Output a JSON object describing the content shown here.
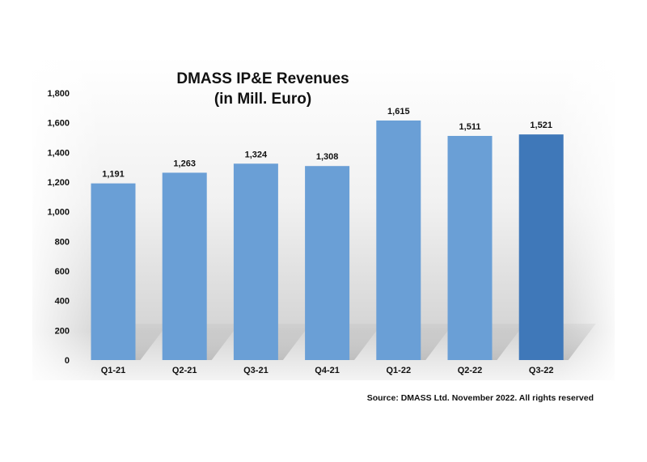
{
  "chart_data": {
    "type": "bar",
    "title": "DMASS IP&E Revenues",
    "subtitle": "(in Mill. Euro)",
    "categories": [
      "Q1-21",
      "Q2-21",
      "Q3-21",
      "Q4-21",
      "Q1-22",
      "Q2-22",
      "Q3-22"
    ],
    "values": [
      1191,
      1263,
      1324,
      1308,
      1615,
      1511,
      1521
    ],
    "value_labels": [
      "1,191",
      "1,263",
      "1,324",
      "1,308",
      "1,615",
      "1,511",
      "1,521"
    ],
    "ylim": [
      0,
      1800
    ],
    "yticks": [
      0,
      200,
      400,
      600,
      800,
      1000,
      1200,
      1400,
      1600,
      1800
    ],
    "ytick_labels": [
      "0",
      "200",
      "400",
      "600",
      "800",
      "1,000",
      "1,200",
      "1,400",
      "1,600",
      "1,800"
    ],
    "grid": false,
    "legend": "none",
    "bar_color": "#6a9fd6",
    "highlight_color": "#3f78b9",
    "highlight_category": "Q3-22"
  },
  "footer": {
    "source": "Source: DMASS Ltd. November 2022. All rights reserved"
  }
}
